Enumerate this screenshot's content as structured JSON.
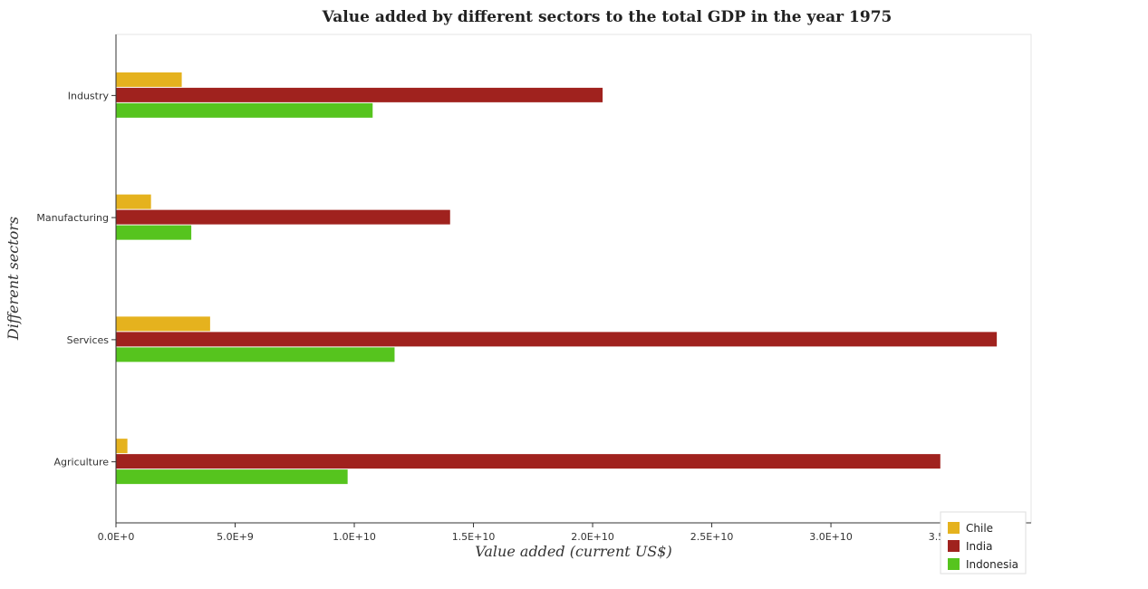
{
  "chart_data": {
    "type": "bar",
    "orientation": "horizontal",
    "title": "Value added by different sectors to the total GDP in the year 1975",
    "xlabel": "Value added (current US$)",
    "ylabel": "Different sectors",
    "categories": [
      "Industry",
      "Manufacturing",
      "Services",
      "Agriculture"
    ],
    "series": [
      {
        "name": "Chile",
        "color": "#e5b21e",
        "values": [
          2760000000.0,
          1470000000.0,
          3950000000.0,
          480000000.0
        ]
      },
      {
        "name": "India",
        "color": "#a0221e",
        "values": [
          20420000000.0,
          14020000000.0,
          36960000000.0,
          34590000000.0
        ]
      },
      {
        "name": "Indonesia",
        "color": "#56c41e",
        "values": [
          10770000000.0,
          3160000000.0,
          11690000000.0,
          9720000000.0
        ]
      }
    ],
    "xticks": [
      0,
      5000000000.0,
      10000000000.0,
      15000000000.0,
      20000000000.0,
      25000000000.0,
      30000000000.0,
      35000000000.0
    ],
    "xtick_labels": [
      "0.0E+0",
      "5.0E+9",
      "1.0E+10",
      "1.5E+10",
      "2.0E+10",
      "2.5E+10",
      "3.0E+10",
      "3.5E+10"
    ],
    "xlim": [
      0,
      38400000000.0
    ],
    "grid": false,
    "legend_position": "bottom-right"
  }
}
